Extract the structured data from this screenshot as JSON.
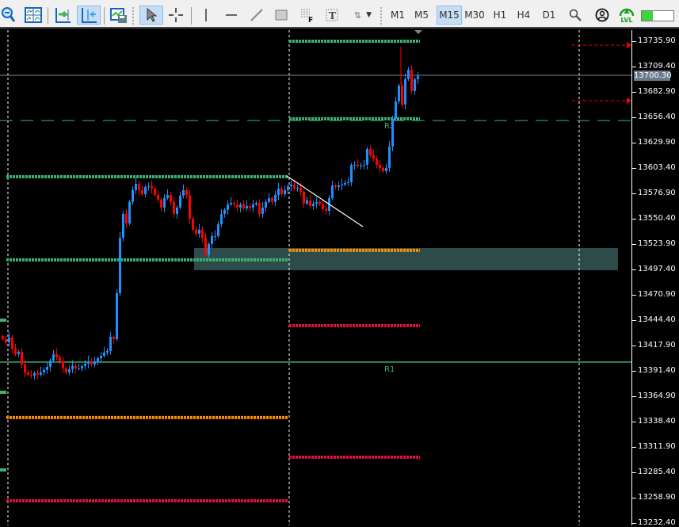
{
  "toolbar": {
    "tools": [
      "zoom-out-icon",
      "tile-windows-icon",
      "autoscroll-icon",
      "chart-shift-icon",
      "save-template-icon",
      "cursor-icon",
      "crosshair-icon",
      "vertical-line-icon",
      "horizontal-line-icon",
      "trendline-icon",
      "rectangle-icon",
      "fibonacci-icon",
      "text-label-icon",
      "arrows-icon"
    ],
    "timeframes": [
      "M1",
      "M5",
      "M15",
      "M30",
      "H1",
      "H4",
      "D1"
    ],
    "active_timeframe": "M15",
    "lvl_label": "LVL",
    "level_bar_fill": 0.35
  },
  "colors": {
    "bull": "#1e90ff",
    "bear": "#ff0000",
    "pivot_green": "#3cb371",
    "orange": "#ff8c00",
    "red_level": "#dc143c",
    "zone": "#2f4f4f",
    "bid_line": "#778899"
  },
  "price_axis": {
    "labels": [
      "13735.90",
      "13709.40",
      "13682.90",
      "13656.40",
      "13629.90",
      "13603.40",
      "13576.90",
      "13550.40",
      "13523.90",
      "13497.40",
      "13470.90",
      "13444.40",
      "13417.90",
      "13391.40",
      "13364.90",
      "13338.40",
      "13311.90",
      "13285.40",
      "13258.90",
      "13232.40"
    ],
    "bid": "13700.30"
  },
  "chart": {
    "closes": [
      13424.6,
      13421.3,
      13426.3,
      13414.7,
      13408.9,
      13411.4,
      13398.1,
      13389.8,
      13387.4,
      13386.5,
      13389.0,
      13387.4,
      13389.8,
      13392.3,
      13395.6,
      13402.3,
      13408.9,
      13405.6,
      13401.4,
      13394.0,
      13389.8,
      13393.2,
      13396.5,
      13394.0,
      13394.0,
      13396.5,
      13398.9,
      13401.4,
      13398.1,
      13401.4,
      13404.7,
      13407.2,
      13410.5,
      13412.2,
      13427.1,
      13424.6,
      13472.6,
      13530.6,
      13555.4,
      13545.5,
      13567.9,
      13580.3,
      13586.9,
      13580.3,
      13576.1,
      13583.6,
      13584.4,
      13581.9,
      13575.3,
      13570.3,
      13562.1,
      13572.0,
      13575.3,
      13567.9,
      13555.4,
      13562.1,
      13574.5,
      13580.3,
      13575.3,
      13550.5,
      13538.9,
      13534.7,
      13538.9,
      13530.6,
      13512.4,
      13524.0,
      13532.3,
      13532.3,
      13544.7,
      13555.4,
      13559.6,
      13565.4,
      13567.0,
      13565.4,
      13562.1,
      13565.4,
      13561.2,
      13563.7,
      13562.1,
      13565.4,
      13567.0,
      13555.4,
      13562.1,
      13567.9,
      13572.0,
      13567.9,
      13575.3,
      13581.9,
      13576.1,
      13580.3,
      13584.4,
      13586.1,
      13581.9,
      13582.8,
      13578.6,
      13566.2,
      13569.5,
      13563.7,
      13566.2,
      13567.9,
      13565.4,
      13560.4,
      13558.7,
      13572.0,
      13585.2,
      13583.6,
      13585.2,
      13586.1,
      13587.7,
      13588.6,
      13606.8,
      13606.8,
      13605.1,
      13606.0,
      13606.8,
      13623.3,
      13616.7,
      13613.4,
      13606.8,
      13603.5,
      13600.2,
      13603.5,
      13625.8,
      13654.8,
      13673.0,
      13689.6,
      13669.7,
      13696.2,
      13706.1,
      13683.8,
      13696.2,
      13699.5
    ],
    "levels": [
      {
        "price": 13735.9,
        "color": "pivot_green",
        "session": "current"
      },
      {
        "price": 13654.8,
        "color": "pivot_green",
        "session": "current"
      },
      {
        "price": 13517.4,
        "color": "orange",
        "session": "current"
      },
      {
        "price": 13438.7,
        "color": "red_level",
        "session": "current"
      },
      {
        "price": 13301.2,
        "color": "red_level",
        "session": "current"
      },
      {
        "price": 13594.3,
        "color": "pivot_green",
        "session": "previous"
      },
      {
        "price": 13507.4,
        "color": "pivot_green",
        "session": "previous"
      },
      {
        "price": 13342.6,
        "color": "orange",
        "session": "previous"
      },
      {
        "price": 13255.7,
        "color": "red_level",
        "session": "previous"
      }
    ],
    "r1": {
      "label": "R1",
      "price": 13400.6
    },
    "r2": {
      "label": "R2",
      "price": 13653.0
    },
    "zone": {
      "top": 13519.8,
      "bottom": 13496.6
    },
    "alert_prices": [
      13731.8,
      13673.8
    ],
    "trendline": {
      "from": 13595.1,
      "to": 13542.1
    }
  }
}
